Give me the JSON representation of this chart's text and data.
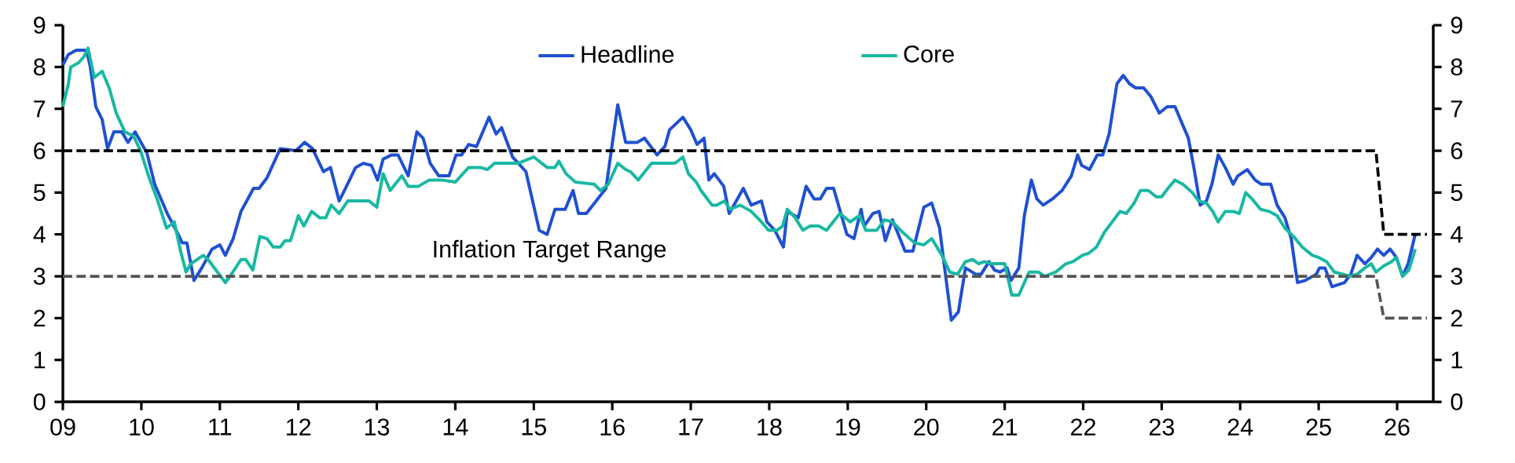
{
  "chart_data": {
    "type": "line",
    "xlim": [
      2009,
      2026.46
    ],
    "xticks": [
      {
        "value": 2009,
        "label": "09"
      },
      {
        "value": 2010,
        "label": "10"
      },
      {
        "value": 2011,
        "label": "11"
      },
      {
        "value": 2012,
        "label": "12"
      },
      {
        "value": 2013,
        "label": "13"
      },
      {
        "value": 2014,
        "label": "14"
      },
      {
        "value": 2015,
        "label": "15"
      },
      {
        "value": 2016,
        "label": "16"
      },
      {
        "value": 2017,
        "label": "17"
      },
      {
        "value": 2018,
        "label": "18"
      },
      {
        "value": 2019,
        "label": "19"
      },
      {
        "value": 2020,
        "label": "20"
      },
      {
        "value": 2021,
        "label": "21"
      },
      {
        "value": 2022,
        "label": "22"
      },
      {
        "value": 2023,
        "label": "23"
      },
      {
        "value": 2024,
        "label": "24"
      },
      {
        "value": 2025,
        "label": "25"
      },
      {
        "value": 2026,
        "label": "26"
      }
    ],
    "ylim": [
      0,
      9
    ],
    "yticks": [
      0,
      1,
      2,
      3,
      4,
      5,
      6,
      7,
      8,
      9
    ],
    "y2lim": [
      0,
      9
    ],
    "y2ticks": [
      0,
      1,
      2,
      3,
      4,
      5,
      6,
      7,
      8,
      9
    ],
    "legend": "top",
    "marker": "none",
    "annotations": [
      "Inflation Target Range"
    ],
    "series": [
      {
        "name": "Headline",
        "color": "#1f50d0",
        "x": [
          2009.0,
          2009.07,
          2009.17,
          2009.3,
          2009.35,
          2009.42,
          2009.5,
          2009.57,
          2009.65,
          2009.75,
          2009.83,
          2009.92,
          2010.07,
          2010.17,
          2010.33,
          2010.47,
          2010.52,
          2010.58,
          2010.67,
          2010.77,
          2010.9,
          2011.0,
          2011.07,
          2011.17,
          2011.27,
          2011.43,
          2011.5,
          2011.6,
          2011.77,
          2011.97,
          2012.08,
          2012.18,
          2012.32,
          2012.41,
          2012.52,
          2012.6,
          2012.73,
          2012.83,
          2012.93,
          2013.01,
          2013.08,
          2013.19,
          2013.27,
          2013.4,
          2013.51,
          2013.59,
          2013.68,
          2013.79,
          2013.92,
          2014.01,
          2014.08,
          2014.17,
          2014.27,
          2014.43,
          2014.52,
          2014.59,
          2014.73,
          2014.9,
          2015.07,
          2015.17,
          2015.27,
          2015.4,
          2015.5,
          2015.57,
          2015.67,
          2015.92,
          2016.07,
          2016.17,
          2016.32,
          2016.41,
          2016.57,
          2016.67,
          2016.73,
          2016.9,
          2017.0,
          2017.08,
          2017.17,
          2017.23,
          2017.3,
          2017.42,
          2017.49,
          2017.67,
          2017.77,
          2017.9,
          2017.97,
          2018.07,
          2018.18,
          2018.23,
          2018.37,
          2018.47,
          2018.57,
          2018.65,
          2018.73,
          2018.82,
          2018.99,
          2019.08,
          2019.17,
          2019.21,
          2019.32,
          2019.4,
          2019.48,
          2019.57,
          2019.73,
          2019.83,
          2019.97,
          2020.07,
          2020.17,
          2020.32,
          2020.41,
          2020.5,
          2020.63,
          2020.7,
          2020.8,
          2020.87,
          2020.94,
          2021.03,
          2021.08,
          2021.18,
          2021.25,
          2021.34,
          2021.41,
          2021.49,
          2021.61,
          2021.73,
          2021.85,
          2021.93,
          2021.98,
          2022.08,
          2022.18,
          2022.25,
          2022.33,
          2022.43,
          2022.51,
          2022.59,
          2022.67,
          2022.77,
          2022.86,
          2022.97,
          2023.07,
          2023.17,
          2023.26,
          2023.34,
          2023.41,
          2023.49,
          2023.57,
          2023.64,
          2023.72,
          2023.81,
          2023.91,
          2023.97,
          2024.09,
          2024.19,
          2024.27,
          2024.39,
          2024.47,
          2024.57,
          2024.65,
          2024.73,
          2024.83,
          2024.97,
          2025.01,
          2025.08,
          2025.17,
          2025.25,
          2025.33,
          2025.41,
          2025.49,
          2025.59,
          2025.67,
          2025.75,
          2025.83,
          2025.91,
          2025.99,
          2026.07,
          2026.14,
          2026.23
        ],
        "values": [
          8.05,
          8.3,
          8.4,
          8.4,
          8.0,
          7.05,
          6.75,
          6.05,
          6.45,
          6.45,
          6.2,
          6.45,
          5.95,
          5.2,
          4.5,
          4.0,
          3.8,
          3.8,
          2.9,
          3.2,
          3.65,
          3.75,
          3.5,
          3.9,
          4.55,
          5.1,
          5.1,
          5.35,
          6.05,
          6.0,
          6.2,
          6.05,
          5.5,
          5.6,
          4.8,
          5.1,
          5.6,
          5.7,
          5.65,
          5.3,
          5.8,
          5.9,
          5.9,
          5.4,
          6.45,
          6.3,
          5.7,
          5.4,
          5.4,
          5.9,
          5.9,
          6.15,
          6.1,
          6.8,
          6.4,
          6.55,
          5.85,
          5.5,
          4.1,
          4.0,
          4.6,
          4.6,
          5.05,
          4.5,
          4.5,
          5.1,
          7.1,
          6.2,
          6.2,
          6.3,
          5.9,
          6.1,
          6.5,
          6.8,
          6.5,
          6.15,
          6.3,
          5.3,
          5.45,
          5.15,
          4.5,
          5.1,
          4.7,
          4.8,
          4.3,
          4.1,
          3.7,
          4.55,
          4.4,
          5.15,
          4.85,
          4.85,
          5.1,
          5.1,
          4.0,
          3.9,
          4.6,
          4.2,
          4.5,
          4.55,
          3.85,
          4.35,
          3.6,
          3.6,
          4.65,
          4.75,
          4.15,
          1.95,
          2.15,
          3.2,
          3.05,
          3.05,
          3.35,
          3.15,
          3.1,
          3.2,
          2.9,
          3.2,
          4.45,
          5.3,
          4.85,
          4.7,
          4.85,
          5.05,
          5.4,
          5.9,
          5.65,
          5.55,
          5.9,
          5.9,
          6.4,
          7.6,
          7.8,
          7.6,
          7.5,
          7.5,
          7.3,
          6.9,
          7.05,
          7.05,
          6.65,
          6.3,
          5.6,
          4.7,
          4.8,
          5.2,
          5.9,
          5.6,
          5.2,
          5.4,
          5.55,
          5.3,
          5.2,
          5.2,
          4.7,
          4.4,
          3.9,
          2.85,
          2.9,
          3.05,
          3.2,
          3.2,
          2.75,
          2.8,
          2.85,
          3.05,
          3.5,
          3.3,
          3.45,
          3.65,
          3.5,
          3.65,
          3.45,
          3.0,
          3.3,
          4.0
        ]
      },
      {
        "name": "Core",
        "color": "#18b8a2",
        "x": [
          2009.0,
          2009.07,
          2009.1,
          2009.2,
          2009.27,
          2009.32,
          2009.4,
          2009.5,
          2009.59,
          2009.68,
          2009.79,
          2009.9,
          2009.99,
          2010.1,
          2010.2,
          2010.32,
          2010.42,
          2010.5,
          2010.57,
          2010.63,
          2010.79,
          2010.85,
          2010.97,
          2011.07,
          2011.13,
          2011.27,
          2011.33,
          2011.42,
          2011.51,
          2011.6,
          2011.68,
          2011.77,
          2011.83,
          2011.9,
          2012.0,
          2012.07,
          2012.17,
          2012.27,
          2012.35,
          2012.42,
          2012.52,
          2012.63,
          2012.73,
          2012.9,
          2013.0,
          2013.08,
          2013.17,
          2013.32,
          2013.4,
          2013.53,
          2013.67,
          2013.83,
          2014.0,
          2014.17,
          2014.32,
          2014.41,
          2014.5,
          2014.8,
          2015.0,
          2015.17,
          2015.27,
          2015.32,
          2015.41,
          2015.53,
          2015.77,
          2015.85,
          2015.95,
          2016.07,
          2016.17,
          2016.23,
          2016.33,
          2016.5,
          2016.8,
          2016.9,
          2016.97,
          2017.07,
          2017.13,
          2017.27,
          2017.33,
          2017.43,
          2017.5,
          2017.63,
          2017.77,
          2017.9,
          2017.99,
          2018.1,
          2018.17,
          2018.23,
          2018.33,
          2018.43,
          2018.52,
          2018.63,
          2018.73,
          2018.9,
          2019.03,
          2019.15,
          2019.23,
          2019.37,
          2019.47,
          2019.57,
          2019.7,
          2019.85,
          2019.97,
          2020.07,
          2020.2,
          2020.3,
          2020.4,
          2020.5,
          2020.59,
          2020.67,
          2020.74,
          2020.83,
          2021.0,
          2021.09,
          2021.18,
          2021.31,
          2021.43,
          2021.51,
          2021.65,
          2021.78,
          2021.87,
          2021.99,
          2022.07,
          2022.17,
          2022.27,
          2022.37,
          2022.47,
          2022.55,
          2022.65,
          2022.73,
          2022.83,
          2022.93,
          2023.0,
          2023.08,
          2023.17,
          2023.27,
          2023.39,
          2023.47,
          2023.57,
          2023.65,
          2023.72,
          2023.81,
          2023.91,
          2023.99,
          2024.07,
          2024.15,
          2024.26,
          2024.37,
          2024.47,
          2024.57,
          2024.68,
          2024.79,
          2024.92,
          2025.0,
          2025.1,
          2025.2,
          2025.31,
          2025.39,
          2025.49,
          2025.59,
          2025.67,
          2025.73,
          2025.83,
          2025.93,
          2025.99,
          2026.07,
          2026.15,
          2026.23
        ],
        "values": [
          7.05,
          7.6,
          8.0,
          8.1,
          8.25,
          8.45,
          7.75,
          7.9,
          7.5,
          6.9,
          6.45,
          6.35,
          6.0,
          5.35,
          4.85,
          4.15,
          4.3,
          3.6,
          3.1,
          3.3,
          3.5,
          3.4,
          3.1,
          2.85,
          3.0,
          3.4,
          3.4,
          3.15,
          3.95,
          3.9,
          3.7,
          3.7,
          3.85,
          3.85,
          4.45,
          4.2,
          4.55,
          4.4,
          4.4,
          4.7,
          4.5,
          4.8,
          4.8,
          4.8,
          4.65,
          5.45,
          5.05,
          5.4,
          5.15,
          5.15,
          5.3,
          5.3,
          5.25,
          5.6,
          5.6,
          5.55,
          5.7,
          5.7,
          5.85,
          5.6,
          5.6,
          5.75,
          5.45,
          5.25,
          5.2,
          5.05,
          5.2,
          5.7,
          5.55,
          5.5,
          5.3,
          5.7,
          5.7,
          5.85,
          5.45,
          5.25,
          5.05,
          4.7,
          4.7,
          4.8,
          4.6,
          4.7,
          4.55,
          4.3,
          4.1,
          4.1,
          4.2,
          4.6,
          4.4,
          4.1,
          4.2,
          4.2,
          4.1,
          4.5,
          4.3,
          4.45,
          4.1,
          4.1,
          4.35,
          4.3,
          4.05,
          3.8,
          3.75,
          3.9,
          3.5,
          3.1,
          3.05,
          3.35,
          3.4,
          3.3,
          3.35,
          3.3,
          3.3,
          2.55,
          2.55,
          3.1,
          3.1,
          3.0,
          3.1,
          3.3,
          3.35,
          3.5,
          3.55,
          3.7,
          4.05,
          4.3,
          4.55,
          4.5,
          4.75,
          5.05,
          5.05,
          4.9,
          4.9,
          5.1,
          5.3,
          5.2,
          5.0,
          4.8,
          4.75,
          4.55,
          4.3,
          4.55,
          4.55,
          4.5,
          5.0,
          4.85,
          4.6,
          4.55,
          4.45,
          4.15,
          3.95,
          3.7,
          3.5,
          3.45,
          3.35,
          3.1,
          3.05,
          3.0,
          3.05,
          3.2,
          3.3,
          3.1,
          3.25,
          3.35,
          3.45,
          3.0,
          3.15,
          3.65
        ]
      },
      {
        "type": "line",
        "line_style": "dashed",
        "color": "#000000",
        "x": [
          2009.0,
          2025.73,
          2025.83,
          2026.38
        ],
        "values": [
          6,
          6,
          4,
          4
        ]
      },
      {
        "type": "line",
        "line_style": "dashed",
        "color": "#555555",
        "x": [
          2009.0,
          2025.73,
          2025.83,
          2026.38
        ],
        "values": [
          3,
          3,
          2,
          2
        ]
      }
    ]
  }
}
